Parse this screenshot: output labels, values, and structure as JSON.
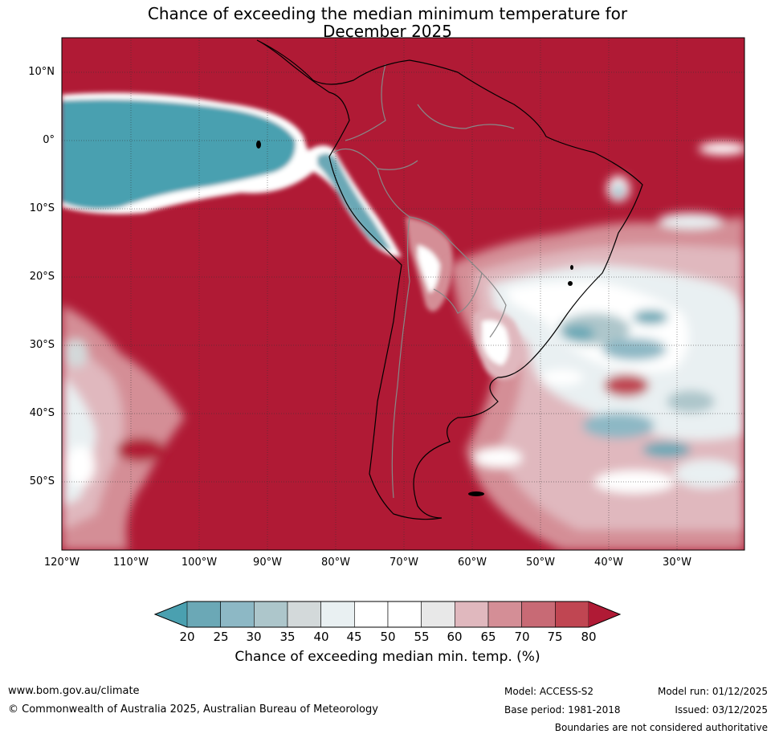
{
  "title": {
    "line1": "Chance of exceeding the median minimum temperature for",
    "line2": "December 2025"
  },
  "map": {
    "region": "South America",
    "lat_labels": [
      "10°N",
      "0°",
      "10°S",
      "20°S",
      "30°S",
      "40°S",
      "50°S"
    ],
    "lon_labels": [
      "120°W",
      "110°W",
      "100°W",
      "90°W",
      "80°W",
      "70°W",
      "60°W",
      "50°W",
      "40°W",
      "30°W"
    ]
  },
  "colorbar": {
    "ticks": [
      "20",
      "25",
      "30",
      "35",
      "40",
      "45",
      "50",
      "55",
      "60",
      "65",
      "70",
      "75",
      "80"
    ],
    "colors": [
      "#4aa0b0",
      "#6ba8b6",
      "#8db8c5",
      "#adc6cb",
      "#d3d9da",
      "#e9f0f2",
      "#ffffff",
      "#ffffff",
      "#e8e8e8",
      "#e0b8be",
      "#d48e96",
      "#c86a75",
      "#c04652",
      "#b01a35"
    ],
    "title": "Chance of exceeding median min. temp. (%)"
  },
  "footer": {
    "website": "www.bom.gov.au/climate",
    "copyright": "© Commonwealth of Australia 2025, Australian Bureau of Meteorology",
    "model": "Model: ACCESS-S2",
    "base_period": "Base period: 1981-2018",
    "model_run": "Model run: 01/12/2025",
    "issued": "Issued: 03/12/2025",
    "disclaimer": "Boundaries are not considered authoritative"
  }
}
